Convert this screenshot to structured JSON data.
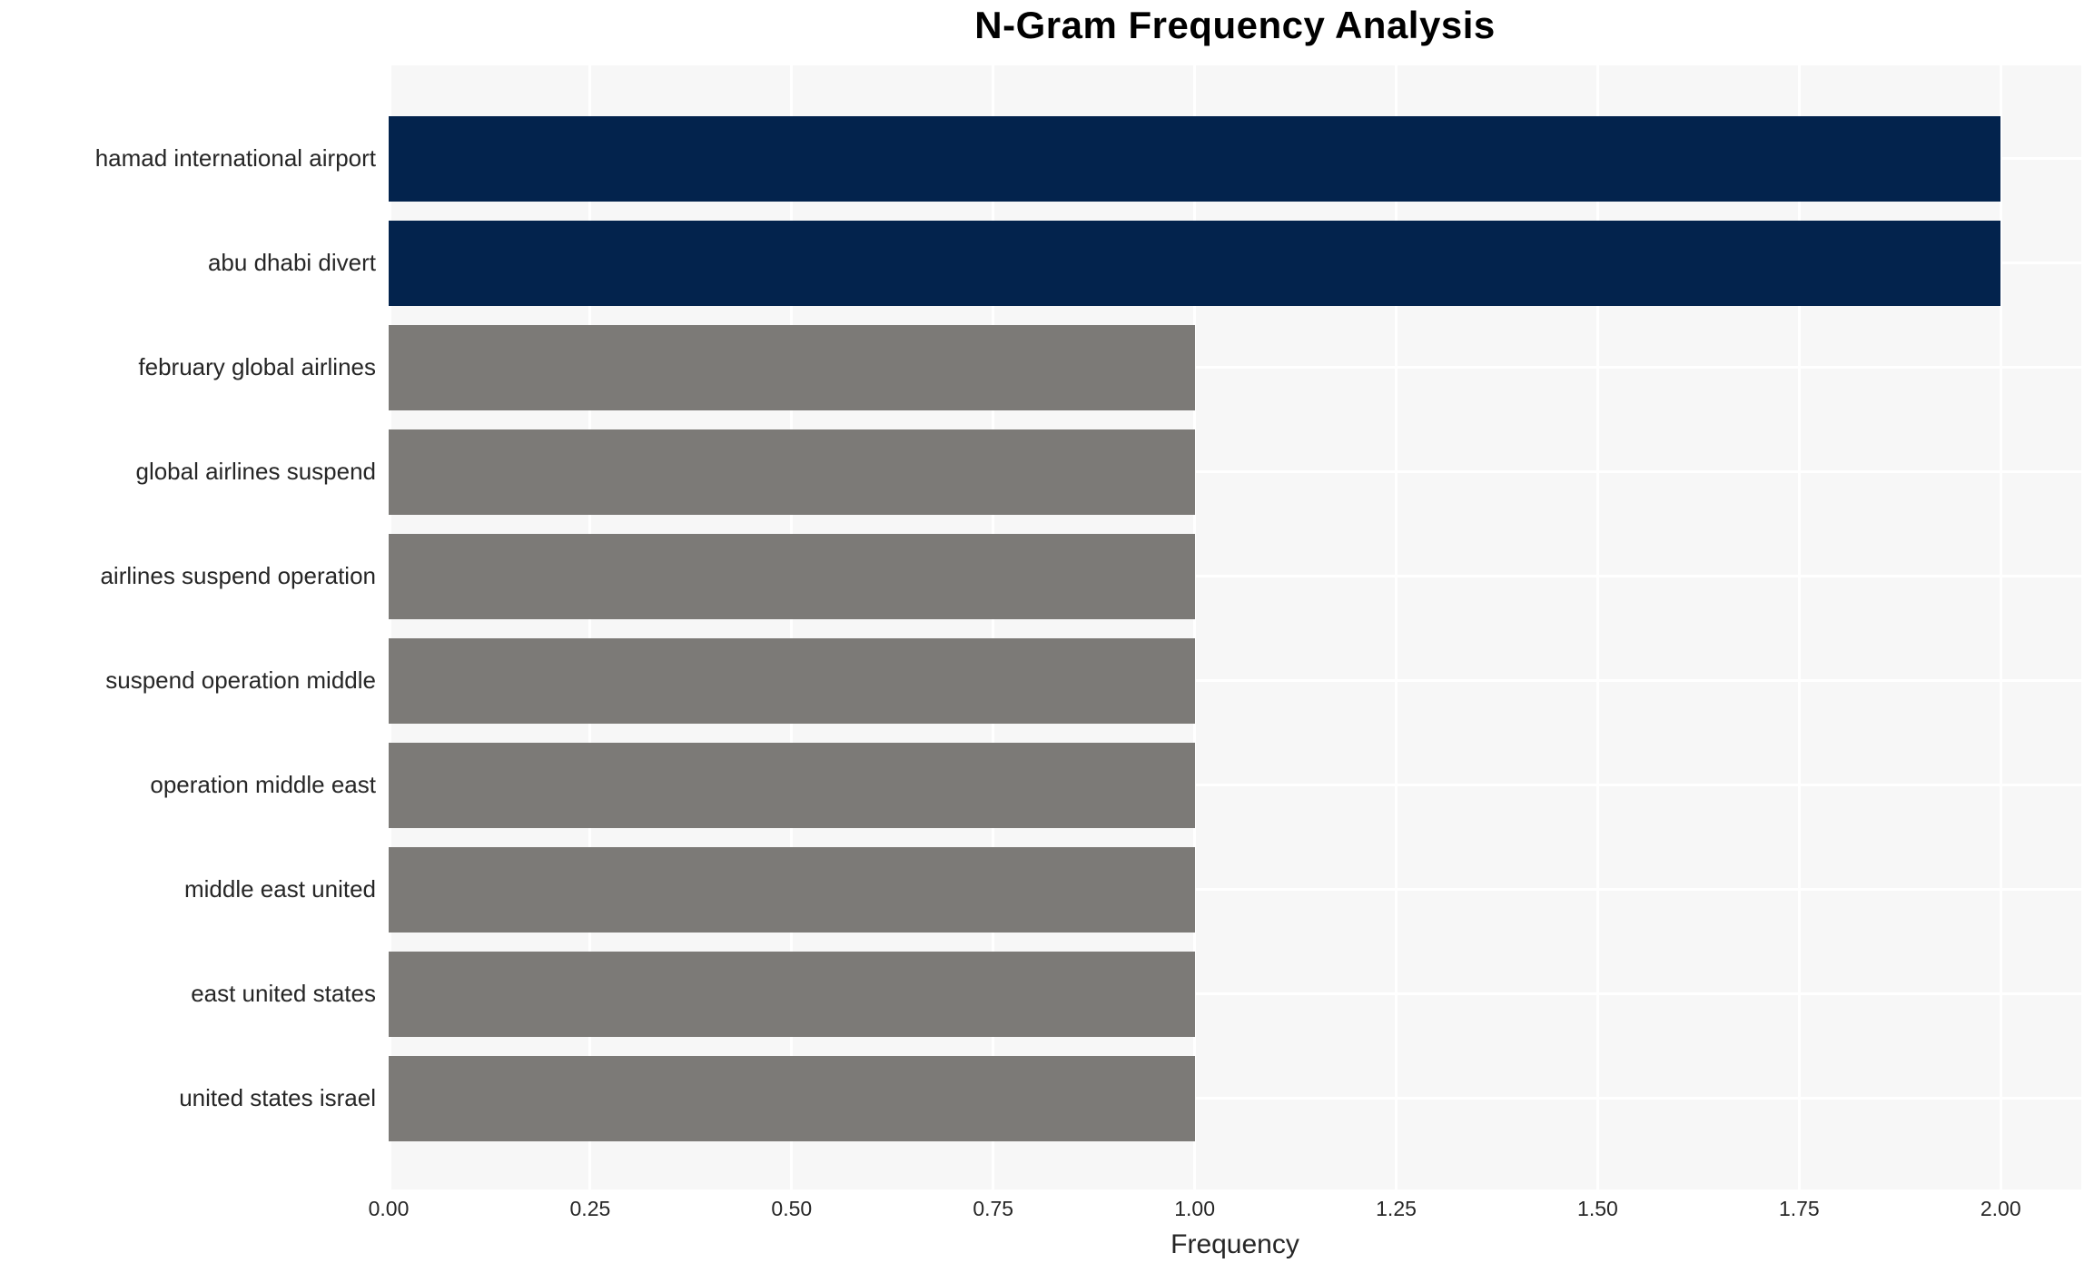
{
  "chart_data": {
    "type": "bar",
    "orientation": "horizontal",
    "title": "N-Gram Frequency Analysis",
    "xlabel": "Frequency",
    "ylabel": "",
    "categories": [
      "hamad international airport",
      "abu dhabi divert",
      "february global airlines",
      "global airlines suspend",
      "airlines suspend operation",
      "suspend operation middle",
      "operation middle east",
      "middle east united",
      "east united states",
      "united states israel"
    ],
    "values": [
      2,
      2,
      1,
      1,
      1,
      1,
      1,
      1,
      1,
      1
    ],
    "bar_colors": [
      "#03234d",
      "#03234d",
      "#7c7a77",
      "#7c7a77",
      "#7c7a77",
      "#7c7a77",
      "#7c7a77",
      "#7c7a77",
      "#7c7a77",
      "#7c7a77"
    ],
    "xlim": [
      0,
      2.1
    ],
    "xticks": [
      0,
      0.25,
      0.5,
      0.75,
      1.0,
      1.25,
      1.5,
      1.75,
      2.0
    ],
    "xtick_labels": [
      "0.00",
      "0.25",
      "0.50",
      "0.75",
      "1.00",
      "1.25",
      "1.50",
      "1.75",
      "2.00"
    ],
    "grid": true,
    "legend": "none",
    "colors": {
      "highlight_bar": "#03234d",
      "base_bar": "#7c7a77",
      "plot_background": "#f7f7f7",
      "grid_line": "#ffffff",
      "page_background": "#ffffff",
      "title_text": "#000000",
      "label_text": "#262626"
    }
  }
}
